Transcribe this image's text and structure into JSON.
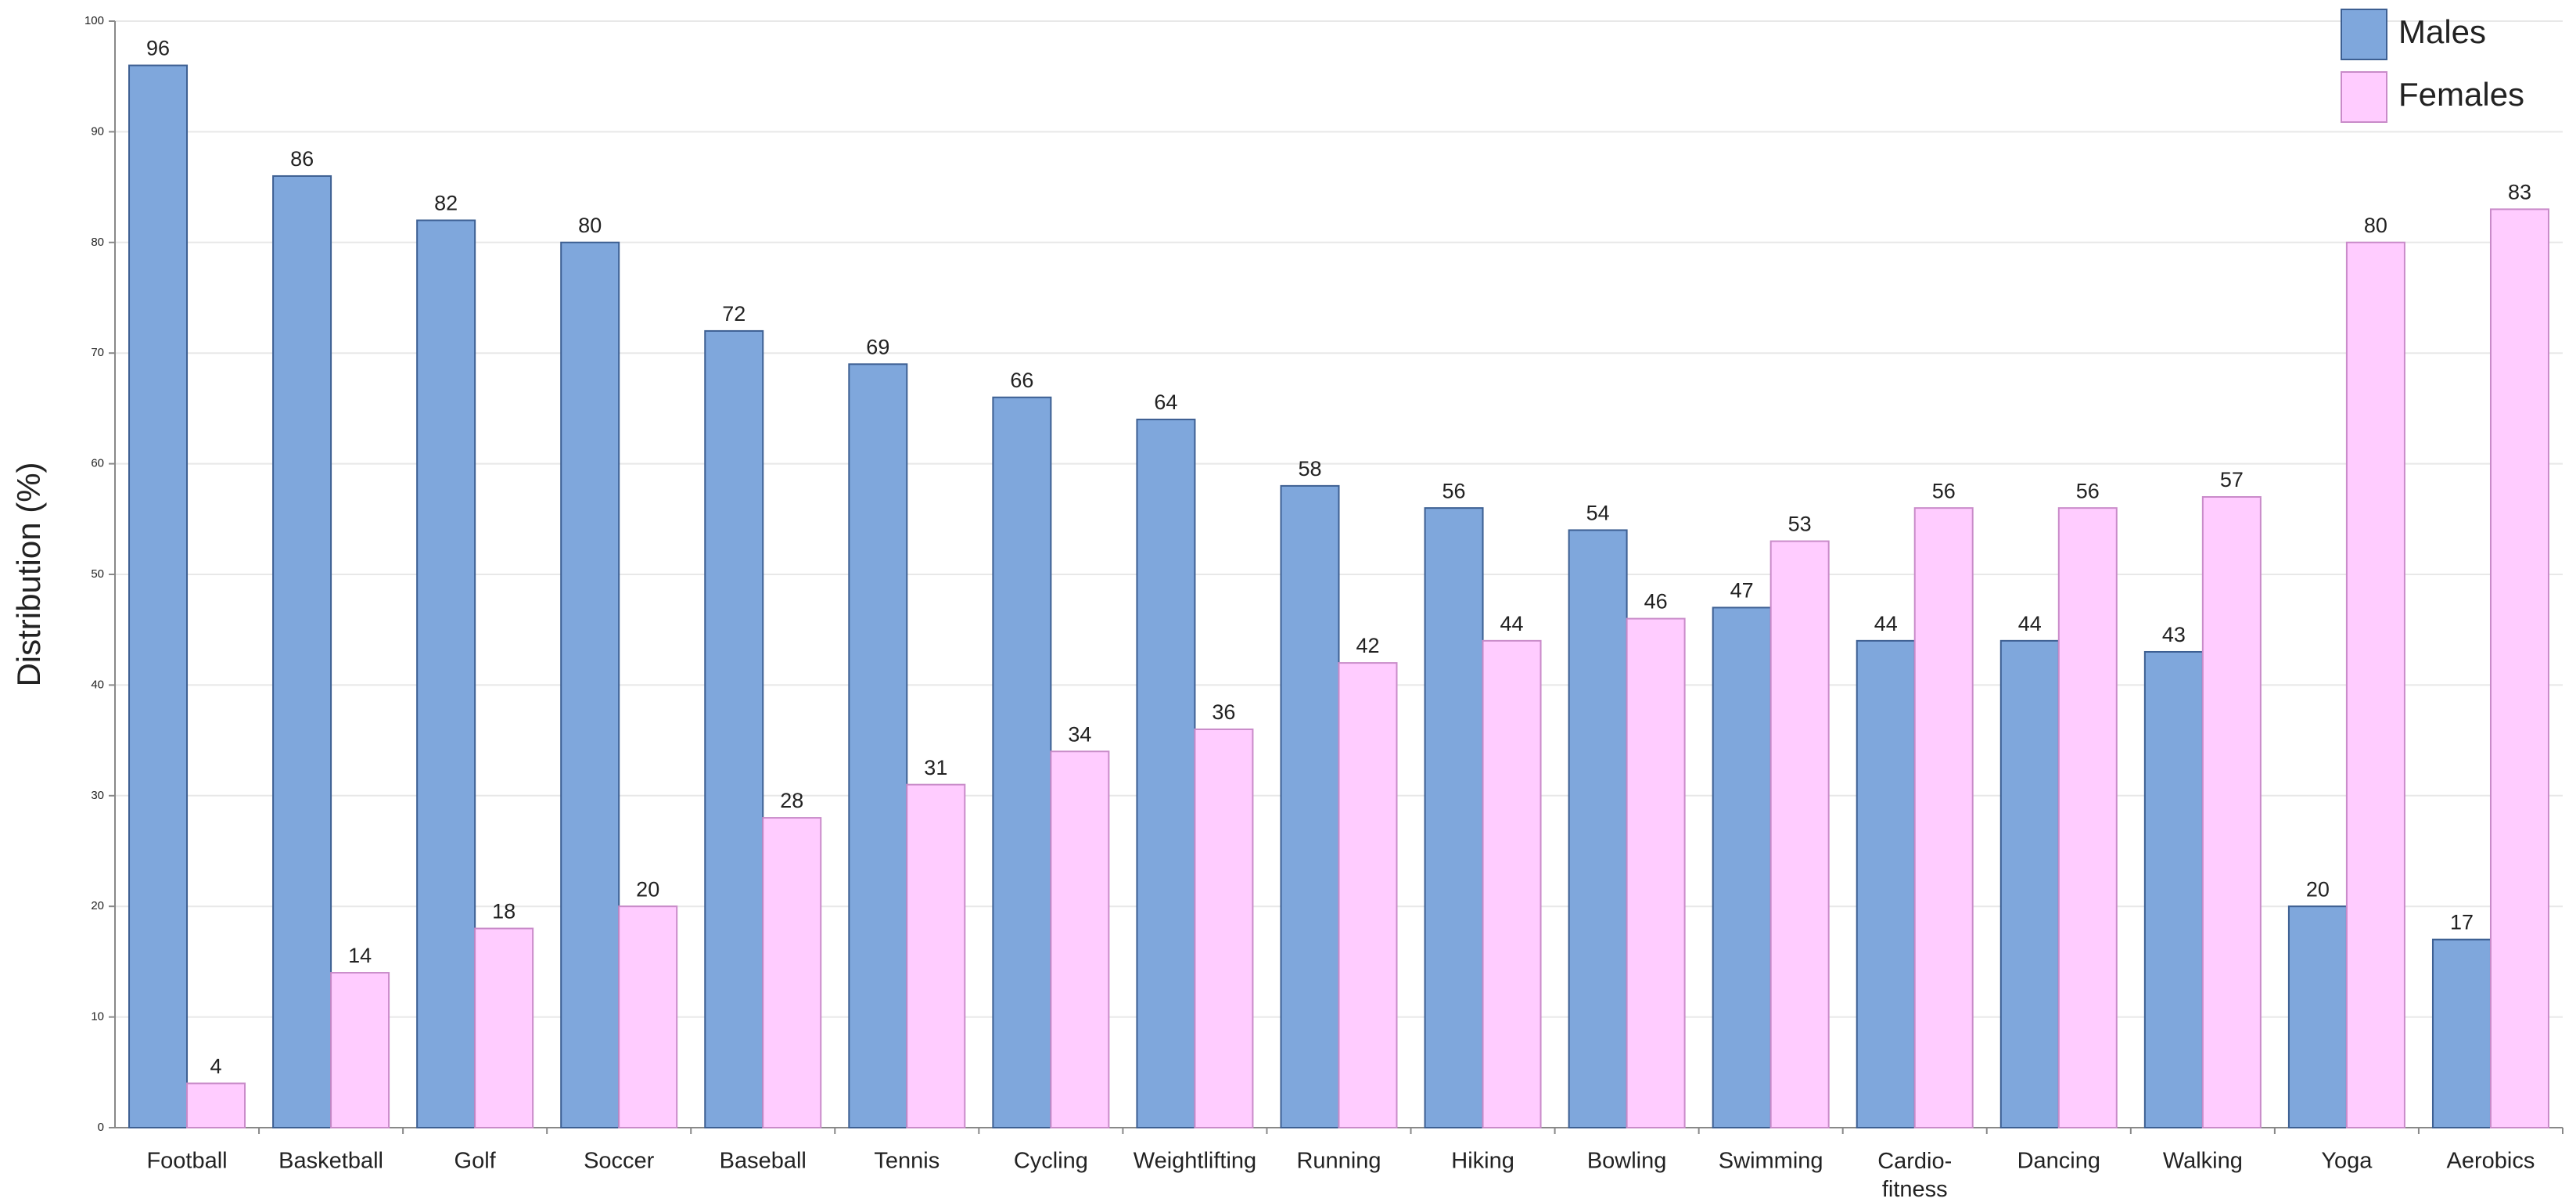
{
  "chart_data": {
    "type": "bar",
    "y_label": "Distribution (%)",
    "categories": [
      "Football",
      "Basketball",
      "Golf",
      "Soccer",
      "Baseball",
      "Tennis",
      "Cycling",
      "Weightlifting",
      "Running",
      "Hiking",
      "Bowling",
      "Swimming",
      "Cardio-fitness",
      "Dancing",
      "Walking",
      "Yoga",
      "Aerobics"
    ],
    "series": [
      {
        "name": "Males",
        "color": "#7fa7dc",
        "values": [
          96,
          86,
          82,
          80,
          72,
          69,
          66,
          64,
          58,
          56,
          54,
          47,
          44,
          44,
          43,
          20,
          17
        ]
      },
      {
        "name": "Females",
        "color": "#ffccff",
        "values": [
          4,
          14,
          18,
          20,
          28,
          31,
          34,
          36,
          42,
          44,
          46,
          53,
          56,
          56,
          57,
          80,
          83
        ]
      }
    ],
    "ylim": [
      0,
      100
    ],
    "yticks": [
      0,
      10,
      20,
      30,
      40,
      50,
      60,
      70,
      80,
      90,
      100
    ],
    "grid": true,
    "legend": "top-right"
  }
}
